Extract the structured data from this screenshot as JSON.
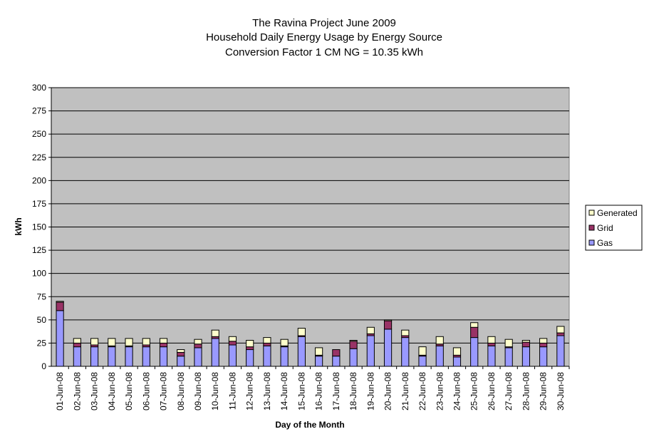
{
  "chart_data": {
    "type": "bar",
    "stacked": true,
    "title": [
      "The Ravina Project June 2009",
      "Household Daily Energy Usage by Energy Source",
      "Conversion Factor 1 CM NG = 10.35 kWh"
    ],
    "xlabel": "Day of the Month",
    "ylabel": "kWh",
    "ylim": [
      0,
      300
    ],
    "yticks": [
      0,
      25,
      50,
      75,
      100,
      125,
      150,
      175,
      200,
      225,
      250,
      275,
      300
    ],
    "grid": true,
    "legend_position": "right",
    "plot_background": "#c0c0c0",
    "categories": [
      "01-Jun-08",
      "02-Jun-08",
      "03-Jun-08",
      "04-Jun-08",
      "05-Jun-08",
      "06-Jun-08",
      "07-Jun-08",
      "08-Jun-08",
      "09-Jun-08",
      "10-Jun-08",
      "11-Jun-08",
      "12-Jun-08",
      "13-Jun-08",
      "14-Jun-08",
      "15-Jun-08",
      "16-Jun-08",
      "17-Jun-08",
      "18-Jun-08",
      "19-Jun-08",
      "20-Jun-08",
      "21-Jun-08",
      "22-Jun-08",
      "23-Jun-08",
      "24-Jun-08",
      "25-Jun-08",
      "26-Jun-08",
      "27-Jun-08",
      "28-Jun-08",
      "29-Jun-08",
      "30-Jun-08"
    ],
    "series": [
      {
        "name": "Gas",
        "color": "#9999ff",
        "values": [
          60,
          21,
          21,
          21,
          21,
          21,
          21,
          11,
          20,
          30,
          23,
          18,
          22,
          21,
          32,
          11,
          11,
          19,
          33,
          40,
          31,
          11,
          22,
          10,
          31,
          22,
          20,
          21,
          21,
          33
        ]
      },
      {
        "name": "Grid",
        "color": "#993366",
        "values": [
          9,
          4,
          2,
          1,
          1,
          2,
          4,
          4,
          4,
          2,
          4,
          3,
          3,
          1,
          1,
          1,
          7,
          8,
          2,
          9,
          2,
          1,
          2,
          2,
          11,
          3,
          1,
          5,
          4,
          3
        ]
      },
      {
        "name": "Generated",
        "color": "#ffffcc",
        "values": [
          1,
          5,
          7,
          8,
          8,
          7,
          5,
          3,
          5,
          7,
          5,
          7,
          6,
          7,
          8,
          8,
          0,
          1,
          7,
          1,
          6,
          9,
          8,
          8,
          5,
          7,
          8,
          2,
          5,
          7
        ]
      }
    ]
  }
}
